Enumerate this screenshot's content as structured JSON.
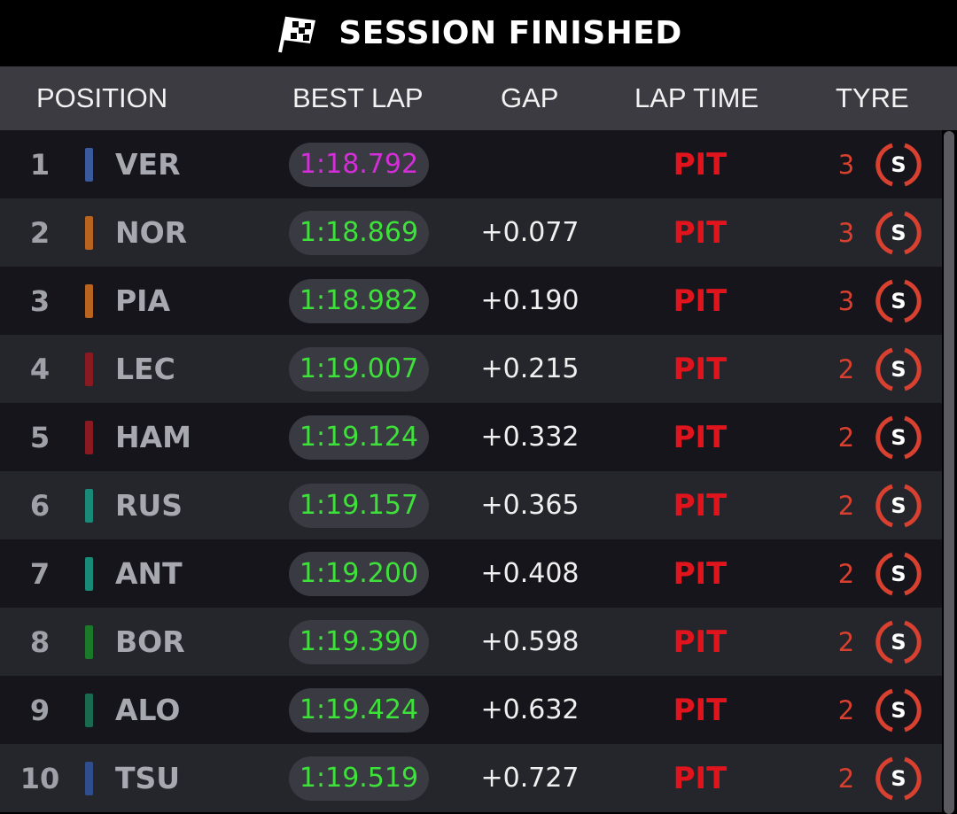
{
  "header": {
    "title": "SESSION FINISHED",
    "icon": "checkered-flag-icon"
  },
  "columns": {
    "position": "POSITION",
    "best_lap": "BEST LAP",
    "gap": "GAP",
    "lap_time": "LAP TIME",
    "tyre": "TYRE"
  },
  "colors": {
    "fastest": "#d42ed8",
    "personal": "#3ee03a",
    "pit": "#e0141c"
  },
  "rows": [
    {
      "pos": "1",
      "driver": "VER",
      "team_color": "#3a5a9e",
      "best_lap": "1:18.792",
      "fastest": true,
      "gap": "",
      "lap_time": "PIT",
      "laps": "3",
      "tyre": "S"
    },
    {
      "pos": "2",
      "driver": "NOR",
      "team_color": "#b8631e",
      "best_lap": "1:18.869",
      "fastest": false,
      "gap": "+0.077",
      "lap_time": "PIT",
      "laps": "3",
      "tyre": "S"
    },
    {
      "pos": "3",
      "driver": "PIA",
      "team_color": "#b8631e",
      "best_lap": "1:18.982",
      "fastest": false,
      "gap": "+0.190",
      "lap_time": "PIT",
      "laps": "3",
      "tyre": "S"
    },
    {
      "pos": "4",
      "driver": "LEC",
      "team_color": "#8a1a22",
      "best_lap": "1:19.007",
      "fastest": false,
      "gap": "+0.215",
      "lap_time": "PIT",
      "laps": "2",
      "tyre": "S"
    },
    {
      "pos": "5",
      "driver": "HAM",
      "team_color": "#8a1a22",
      "best_lap": "1:19.124",
      "fastest": false,
      "gap": "+0.332",
      "lap_time": "PIT",
      "laps": "2",
      "tyre": "S"
    },
    {
      "pos": "6",
      "driver": "RUS",
      "team_color": "#1a8a78",
      "best_lap": "1:19.157",
      "fastest": false,
      "gap": "+0.365",
      "lap_time": "PIT",
      "laps": "2",
      "tyre": "S"
    },
    {
      "pos": "7",
      "driver": "ANT",
      "team_color": "#1a8a78",
      "best_lap": "1:19.200",
      "fastest": false,
      "gap": "+0.408",
      "lap_time": "PIT",
      "laps": "2",
      "tyre": "S"
    },
    {
      "pos": "8",
      "driver": "BOR",
      "team_color": "#1a7a2a",
      "best_lap": "1:19.390",
      "fastest": false,
      "gap": "+0.598",
      "lap_time": "PIT",
      "laps": "2",
      "tyre": "S"
    },
    {
      "pos": "9",
      "driver": "ALO",
      "team_color": "#1a6a50",
      "best_lap": "1:19.424",
      "fastest": false,
      "gap": "+0.632",
      "lap_time": "PIT",
      "laps": "2",
      "tyre": "S"
    },
    {
      "pos": "10",
      "driver": "TSU",
      "team_color": "#2e4e8e",
      "best_lap": "1:19.519",
      "fastest": false,
      "gap": "+0.727",
      "lap_time": "PIT",
      "laps": "2",
      "tyre": "S"
    }
  ]
}
